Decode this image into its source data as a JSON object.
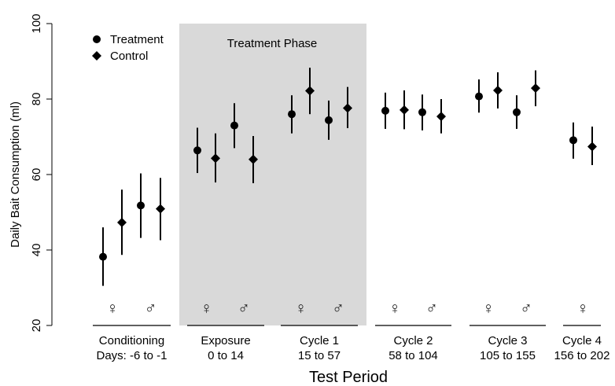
{
  "chart_data": {
    "type": "scatter",
    "title": "",
    "xlabel": "Test Period",
    "ylabel": "Daily Bait Consumption (ml)",
    "ylim": [
      20,
      100
    ],
    "yticks": [
      "20",
      "40",
      "60",
      "80",
      "100"
    ],
    "grid": false,
    "legend_position": "top-left",
    "shaded_region": {
      "label": "Treatment Phase",
      "groups": [
        "Exposure",
        "Cycle 1"
      ],
      "color": "#d9d9d9"
    },
    "sex_symbols": {
      "female": "♀",
      "male": "♂"
    },
    "groups": [
      {
        "name": "Conditioning",
        "range": "Days: -6 to -1",
        "sexes": [
          "♀",
          "♂"
        ]
      },
      {
        "name": "Exposure",
        "range": "0 to 14",
        "sexes": [
          "♀",
          "♂"
        ]
      },
      {
        "name": "Cycle 1",
        "range": "15 to 57",
        "sexes": [
          "♀",
          "♂"
        ]
      },
      {
        "name": "Cycle 2",
        "range": "58 to 104",
        "sexes": [
          "♀",
          "♂"
        ]
      },
      {
        "name": "Cycle 3",
        "range": "105 to 155",
        "sexes": [
          "♀",
          "♂"
        ]
      },
      {
        "name": "Cycle 4",
        "range": "156 to 202",
        "sexes": [
          "♀"
        ]
      }
    ],
    "series": [
      {
        "name": "Treatment",
        "marker": "circle",
        "points": [
          {
            "group": "Conditioning",
            "sex": "♀",
            "y": 38.2,
            "lo": 30.5,
            "hi": 46.0
          },
          {
            "group": "Conditioning",
            "sex": "♂",
            "y": 51.8,
            "lo": 43.2,
            "hi": 60.3
          },
          {
            "group": "Exposure",
            "sex": "♀",
            "y": 66.4,
            "lo": 60.4,
            "hi": 72.4
          },
          {
            "group": "Exposure",
            "sex": "♂",
            "y": 73.0,
            "lo": 67.0,
            "hi": 78.9
          },
          {
            "group": "Cycle 1",
            "sex": "♀",
            "y": 76.0,
            "lo": 70.9,
            "hi": 81.0
          },
          {
            "group": "Cycle 1",
            "sex": "♂",
            "y": 74.4,
            "lo": 69.2,
            "hi": 79.6
          },
          {
            "group": "Cycle 2",
            "sex": "♀",
            "y": 76.9,
            "lo": 72.1,
            "hi": 81.7
          },
          {
            "group": "Cycle 2",
            "sex": "♂",
            "y": 76.5,
            "lo": 71.7,
            "hi": 81.2
          },
          {
            "group": "Cycle 3",
            "sex": "♀",
            "y": 80.7,
            "lo": 76.4,
            "hi": 85.2
          },
          {
            "group": "Cycle 3",
            "sex": "♂",
            "y": 76.5,
            "lo": 72.1,
            "hi": 81.0
          },
          {
            "group": "Cycle 4",
            "sex": "♀",
            "y": 69.1,
            "lo": 64.2,
            "hi": 73.8
          }
        ]
      },
      {
        "name": "Control",
        "marker": "diamond",
        "points": [
          {
            "group": "Conditioning",
            "sex": "♀",
            "y": 47.3,
            "lo": 38.7,
            "hi": 56.0
          },
          {
            "group": "Conditioning",
            "sex": "♂",
            "y": 50.9,
            "lo": 42.6,
            "hi": 59.1
          },
          {
            "group": "Exposure",
            "sex": "♀",
            "y": 64.3,
            "lo": 57.9,
            "hi": 70.9
          },
          {
            "group": "Exposure",
            "sex": "♂",
            "y": 64.0,
            "lo": 57.7,
            "hi": 70.2
          },
          {
            "group": "Cycle 1",
            "sex": "♀",
            "y": 82.2,
            "lo": 76.0,
            "hi": 88.3
          },
          {
            "group": "Cycle 1",
            "sex": "♂",
            "y": 77.6,
            "lo": 72.3,
            "hi": 83.2
          },
          {
            "group": "Cycle 2",
            "sex": "♀",
            "y": 77.1,
            "lo": 72.0,
            "hi": 82.3
          },
          {
            "group": "Cycle 2",
            "sex": "♂",
            "y": 75.4,
            "lo": 70.9,
            "hi": 80.0
          },
          {
            "group": "Cycle 3",
            "sex": "♀",
            "y": 82.3,
            "lo": 77.5,
            "hi": 87.1
          },
          {
            "group": "Cycle 3",
            "sex": "♂",
            "y": 82.9,
            "lo": 78.1,
            "hi": 87.6
          },
          {
            "group": "Cycle 4",
            "sex": "♀",
            "y": 67.4,
            "lo": 62.5,
            "hi": 72.7
          }
        ]
      }
    ]
  }
}
